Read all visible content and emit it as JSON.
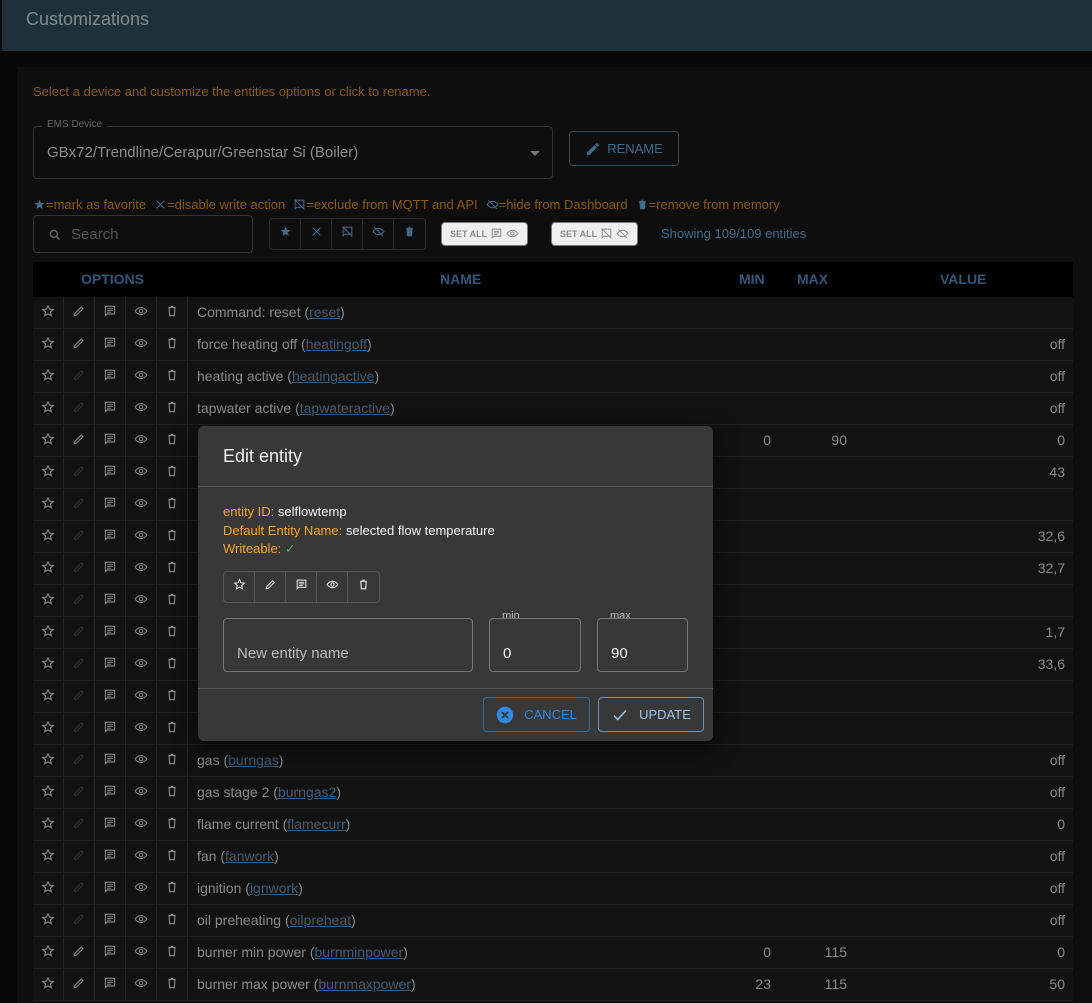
{
  "header": {
    "title": "Customizations"
  },
  "hint": "Select a device and customize the entities options or click to rename.",
  "device": {
    "label": "EMS Device",
    "value": "GBx72/Trendline/Cerapur/Greenstar Si (Boiler)"
  },
  "rename_label": "RENAME",
  "legend": {
    "favorite": "=mark as favorite",
    "readonly": "=disable write action",
    "exclude": "=exclude from MQTT and API",
    "hide": "=hide from Dashboard",
    "remove": "=remove from memory"
  },
  "search": {
    "placeholder": "Search"
  },
  "set_all_1": "SET ALL",
  "set_all_2": "SET ALL",
  "count": "Showing 109/109 entities",
  "columns": {
    "options": "OPTIONS",
    "name": "NAME",
    "min": "MIN",
    "max": "MAX",
    "value": "VALUE"
  },
  "rows": [
    {
      "name": "Command: reset",
      "id": "reset",
      "min": "",
      "max": "",
      "value": "",
      "writeable": true
    },
    {
      "name": "force heating off",
      "id": "heatingoff",
      "min": "",
      "max": "",
      "value": "off",
      "writeable": true
    },
    {
      "name": "heating active",
      "id": "heatingactive",
      "min": "",
      "max": "",
      "value": "off",
      "writeable": false
    },
    {
      "name": "tapwater active",
      "id": "tapwateractive",
      "min": "",
      "max": "",
      "value": "off",
      "writeable": false
    },
    {
      "name": "",
      "id": "",
      "min": "0",
      "max": "90",
      "value": "0",
      "writeable": true
    },
    {
      "name": "",
      "id": "",
      "min": "",
      "max": "",
      "value": "43",
      "writeable": false
    },
    {
      "name": "",
      "id": "",
      "min": "",
      "max": "",
      "value": "",
      "writeable": false
    },
    {
      "name": "",
      "id": "",
      "min": "",
      "max": "",
      "value": "32,6",
      "writeable": false
    },
    {
      "name": "",
      "id": "",
      "min": "",
      "max": "",
      "value": "32,7",
      "writeable": false
    },
    {
      "name": "",
      "id": "",
      "min": "",
      "max": "",
      "value": "",
      "writeable": false
    },
    {
      "name": "",
      "id": "",
      "min": "",
      "max": "",
      "value": "1,7",
      "writeable": false
    },
    {
      "name": "",
      "id": "",
      "min": "",
      "max": "",
      "value": "33,6",
      "writeable": false
    },
    {
      "name": "",
      "id": "",
      "min": "",
      "max": "",
      "value": "",
      "writeable": false
    },
    {
      "name": "",
      "id": "",
      "min": "",
      "max": "",
      "value": "",
      "writeable": false
    },
    {
      "name": "gas",
      "id": "burngas",
      "min": "",
      "max": "",
      "value": "off",
      "writeable": false
    },
    {
      "name": "gas stage 2",
      "id": "burngas2",
      "min": "",
      "max": "",
      "value": "off",
      "writeable": false
    },
    {
      "name": "flame current",
      "id": "flamecurr",
      "min": "",
      "max": "",
      "value": "0",
      "writeable": false
    },
    {
      "name": "fan",
      "id": "fanwork",
      "min": "",
      "max": "",
      "value": "off",
      "writeable": false
    },
    {
      "name": "ignition",
      "id": "ignwork",
      "min": "",
      "max": "",
      "value": "off",
      "writeable": false
    },
    {
      "name": "oil preheating",
      "id": "oilpreheat",
      "min": "",
      "max": "",
      "value": "off",
      "writeable": false
    },
    {
      "name": "burner min power",
      "id": "burnminpower",
      "min": "0",
      "max": "115",
      "value": "0",
      "writeable": true
    },
    {
      "name": "burner max power",
      "id": "burnmaxpower",
      "min": "23",
      "max": "115",
      "value": "50",
      "writeable": true
    }
  ],
  "dialog": {
    "title": "Edit entity",
    "entity_id_label": "entity ID:",
    "entity_id": "selflowtemp",
    "default_name_label": "Default Entity Name:",
    "default_name": "selected flow temperature",
    "writeable_label": "Writeable:",
    "name_placeholder": "New entity name",
    "min_label": "min",
    "min_value": "0",
    "max_label": "max",
    "max_value": "90",
    "cancel": "CANCEL",
    "update": "UPDATE"
  },
  "colors": {
    "accent": "#2f8ae0",
    "warning": "#f5a623",
    "success": "#4caf50",
    "header": "#1f3138"
  }
}
